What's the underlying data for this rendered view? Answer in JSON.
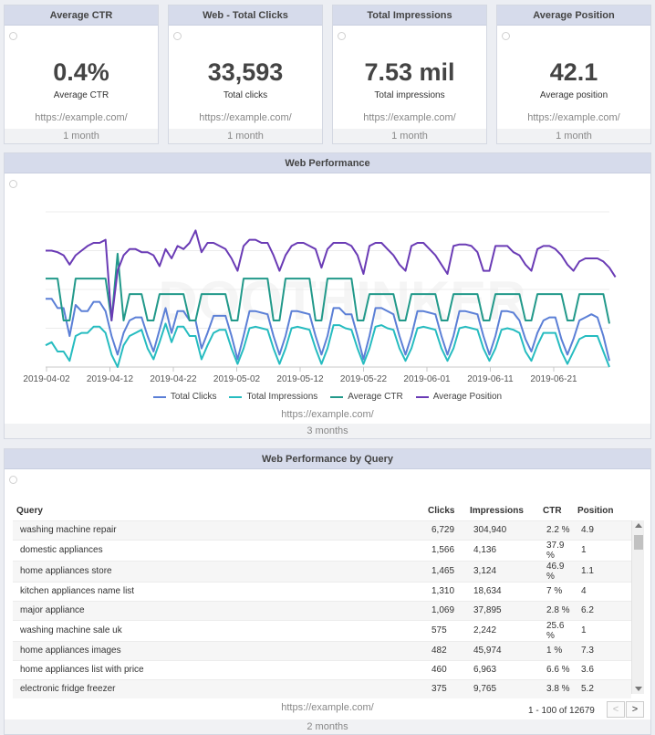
{
  "kpis": [
    {
      "title": "Average CTR",
      "value": "0.4%",
      "label": "Average CTR",
      "url": "https://example.com/",
      "period": "1 month"
    },
    {
      "title": "Web - Total Clicks",
      "value": "33,593",
      "label": "Total clicks",
      "url": "https://example.com/",
      "period": "1 month"
    },
    {
      "title": "Total Impressions",
      "value": "7.53 mil",
      "label": "Total impressions",
      "url": "https://example.com/",
      "period": "1 month"
    },
    {
      "title": "Average Position",
      "value": "42.1",
      "label": "Average position",
      "url": "https://example.com/",
      "period": "1 month"
    }
  ],
  "performance": {
    "title": "Web Performance",
    "url": "https://example.com/",
    "period": "3 months",
    "watermark": "DOOTHINKER",
    "legend": [
      "Total Clicks",
      "Total Impressions",
      "Average CTR",
      "Average Position"
    ]
  },
  "chart_data": {
    "type": "line",
    "x_tick_labels": [
      "2019-04-02",
      "2019-04-12",
      "2019-04-22",
      "2019-05-02",
      "2019-05-12",
      "2019-05-22",
      "2019-06-01",
      "2019-06-11",
      "2019-06-21"
    ],
    "x_start": "2019-04-02",
    "y_axis": "unlabeled (normalized series)",
    "grid": true,
    "legend_placement": "bottom",
    "colors": {
      "Total Clicks": "#5b7fd6",
      "Total Impressions": "#26bcc0",
      "Average CTR": "#22998a",
      "Average Position": "#6a3bb5"
    },
    "series": [
      {
        "name": "Total Clicks",
        "values": [
          0.44,
          0.44,
          0.38,
          0.38,
          0.2,
          0.4,
          0.36,
          0.36,
          0.42,
          0.42,
          0.36,
          0.2,
          0.08,
          0.22,
          0.3,
          0.32,
          0.32,
          0.2,
          0.1,
          0.24,
          0.38,
          0.22,
          0.36,
          0.36,
          0.3,
          0.3,
          0.12,
          0.22,
          0.33,
          0.33,
          0.33,
          0.2,
          0.05,
          0.2,
          0.36,
          0.36,
          0.35,
          0.34,
          0.2,
          0.08,
          0.2,
          0.36,
          0.36,
          0.35,
          0.34,
          0.2,
          0.08,
          0.2,
          0.38,
          0.38,
          0.34,
          0.34,
          0.2,
          0.05,
          0.2,
          0.38,
          0.38,
          0.36,
          0.34,
          0.2,
          0.08,
          0.2,
          0.36,
          0.36,
          0.35,
          0.34,
          0.2,
          0.08,
          0.2,
          0.36,
          0.36,
          0.35,
          0.34,
          0.2,
          0.08,
          0.2,
          0.36,
          0.36,
          0.35,
          0.3,
          0.18,
          0.1,
          0.22,
          0.3,
          0.32,
          0.32,
          0.18,
          0.08,
          0.18,
          0.3,
          0.32,
          0.34,
          0.32,
          0.2,
          0.04
        ]
      },
      {
        "name": "Total Impressions",
        "values": [
          0.14,
          0.16,
          0.1,
          0.1,
          0.04,
          0.2,
          0.22,
          0.22,
          0.26,
          0.26,
          0.22,
          0.08,
          0.0,
          0.14,
          0.2,
          0.22,
          0.24,
          0.12,
          0.05,
          0.16,
          0.28,
          0.16,
          0.26,
          0.26,
          0.2,
          0.2,
          0.05,
          0.14,
          0.22,
          0.24,
          0.24,
          0.12,
          0.02,
          0.12,
          0.25,
          0.26,
          0.25,
          0.24,
          0.12,
          0.02,
          0.12,
          0.25,
          0.26,
          0.25,
          0.24,
          0.12,
          0.02,
          0.12,
          0.27,
          0.27,
          0.25,
          0.24,
          0.12,
          0.02,
          0.12,
          0.26,
          0.27,
          0.25,
          0.24,
          0.12,
          0.04,
          0.12,
          0.25,
          0.26,
          0.25,
          0.24,
          0.12,
          0.04,
          0.12,
          0.25,
          0.26,
          0.25,
          0.24,
          0.12,
          0.04,
          0.12,
          0.24,
          0.25,
          0.24,
          0.22,
          0.1,
          0.04,
          0.14,
          0.22,
          0.22,
          0.22,
          0.1,
          0.02,
          0.1,
          0.18,
          0.2,
          0.2,
          0.2,
          0.1,
          0.0
        ]
      },
      {
        "name": "Average CTR",
        "values": [
          0.57,
          0.57,
          0.57,
          0.3,
          0.3,
          0.57,
          0.57,
          0.57,
          0.57,
          0.57,
          0.57,
          0.3,
          0.73,
          0.3,
          0.47,
          0.47,
          0.47,
          0.3,
          0.3,
          0.47,
          0.47,
          0.47,
          0.47,
          0.47,
          0.3,
          0.3,
          0.47,
          0.47,
          0.47,
          0.47,
          0.47,
          0.3,
          0.3,
          0.57,
          0.57,
          0.57,
          0.57,
          0.57,
          0.3,
          0.3,
          0.57,
          0.57,
          0.57,
          0.57,
          0.57,
          0.3,
          0.3,
          0.57,
          0.57,
          0.57,
          0.57,
          0.57,
          0.3,
          0.3,
          0.47,
          0.47,
          0.47,
          0.47,
          0.47,
          0.3,
          0.3,
          0.47,
          0.47,
          0.47,
          0.47,
          0.47,
          0.3,
          0.3,
          0.47,
          0.47,
          0.47,
          0.47,
          0.47,
          0.3,
          0.3,
          0.47,
          0.47,
          0.47,
          0.47,
          0.47,
          0.3,
          0.3,
          0.47,
          0.47,
          0.47,
          0.47,
          0.47,
          0.3,
          0.3,
          0.47,
          0.47,
          0.47,
          0.47,
          0.47,
          0.28
        ]
      },
      {
        "name": "Average Position",
        "values": [
          0.75,
          0.75,
          0.74,
          0.72,
          0.66,
          0.72,
          0.75,
          0.78,
          0.8,
          0.8,
          0.82,
          0.3,
          0.62,
          0.72,
          0.76,
          0.76,
          0.74,
          0.74,
          0.72,
          0.65,
          0.76,
          0.7,
          0.78,
          0.76,
          0.8,
          0.88,
          0.74,
          0.8,
          0.8,
          0.78,
          0.76,
          0.7,
          0.62,
          0.78,
          0.82,
          0.82,
          0.8,
          0.8,
          0.72,
          0.62,
          0.72,
          0.78,
          0.8,
          0.8,
          0.78,
          0.76,
          0.64,
          0.76,
          0.8,
          0.8,
          0.8,
          0.78,
          0.72,
          0.6,
          0.78,
          0.8,
          0.8,
          0.76,
          0.72,
          0.66,
          0.62,
          0.78,
          0.8,
          0.8,
          0.76,
          0.72,
          0.66,
          0.6,
          0.78,
          0.79,
          0.79,
          0.78,
          0.74,
          0.62,
          0.62,
          0.78,
          0.78,
          0.78,
          0.74,
          0.72,
          0.66,
          0.62,
          0.76,
          0.78,
          0.78,
          0.76,
          0.72,
          0.66,
          0.62,
          0.68,
          0.7,
          0.7,
          0.7,
          0.68,
          0.64,
          0.58
        ]
      }
    ]
  },
  "query_table": {
    "title": "Web Performance by Query",
    "url": "https://example.com/",
    "period": "2 months",
    "pager": {
      "range": "1 - 100 of 12679",
      "prev": "<",
      "next": ">"
    },
    "columns": [
      "Query",
      "Clicks",
      "Impressions",
      "CTR",
      "Position"
    ],
    "rows": [
      [
        "washing machine repair",
        "6,729",
        "304,940",
        "2.2 %",
        "4.9"
      ],
      [
        "domestic appliances",
        "1,566",
        "4,136",
        "37.9 %",
        "1"
      ],
      [
        "home appliances store",
        "1,465",
        "3,124",
        "46.9 %",
        "1.1"
      ],
      [
        "kitchen appliances name list",
        "1,310",
        "18,634",
        "7 %",
        "4"
      ],
      [
        "major appliance",
        "1,069",
        "37,895",
        "2.8 %",
        "6.2"
      ],
      [
        "washing machine sale uk",
        "575",
        "2,242",
        "25.6 %",
        "1"
      ],
      [
        "home appliances images",
        "482",
        "45,974",
        "1 %",
        "7.3"
      ],
      [
        "home appliances list with price",
        "460",
        "6,963",
        "6.6 %",
        "3.6"
      ],
      [
        "electronic fridge freezer",
        "375",
        "9,765",
        "3.8 %",
        "5.2"
      ]
    ]
  }
}
